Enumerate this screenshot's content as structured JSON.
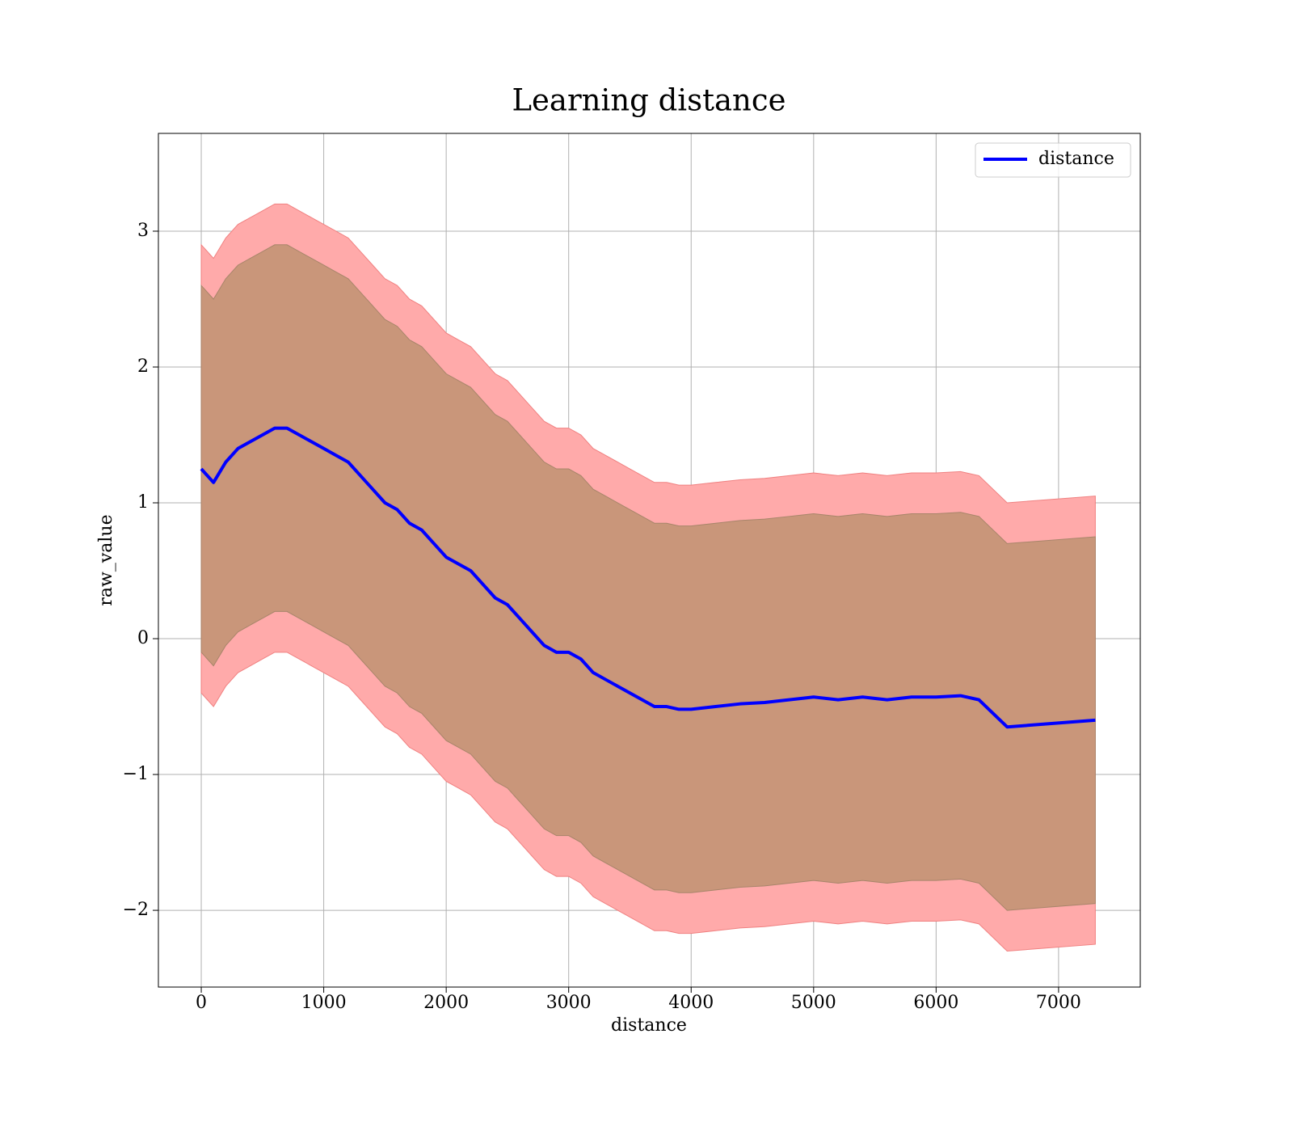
{
  "chart_data": {
    "type": "line",
    "title": "Learning distance",
    "x_label": "distance",
    "y_label": "raw_value",
    "x": [
      0,
      100,
      200,
      300,
      400,
      500,
      600,
      700,
      800,
      900,
      1000,
      1100,
      1200,
      1300,
      1400,
      1500,
      1600,
      1700,
      1800,
      1900,
      2000,
      2100,
      2200,
      2300,
      2400,
      2500,
      2600,
      2700,
      2800,
      2900,
      3000,
      3100,
      3200,
      3300,
      3400,
      3500,
      3600,
      3700,
      3800,
      3900,
      4000,
      4200,
      4400,
      4600,
      4800,
      5000,
      5200,
      5400,
      5600,
      5800,
      6000,
      6200,
      6350,
      6580,
      7300
    ],
    "series": [
      {
        "name": "distance",
        "color": "#0000ff",
        "values": [
          1.25,
          1.15,
          1.3,
          1.4,
          1.45,
          1.5,
          1.55,
          1.55,
          1.5,
          1.45,
          1.4,
          1.35,
          1.3,
          1.2,
          1.1,
          1.0,
          0.95,
          0.85,
          0.8,
          0.7,
          0.6,
          0.55,
          0.5,
          0.4,
          0.3,
          0.25,
          0.15,
          0.05,
          -0.05,
          -0.1,
          -0.1,
          -0.15,
          -0.25,
          -0.3,
          -0.35,
          -0.4,
          -0.45,
          -0.5,
          -0.5,
          -0.52,
          -0.52,
          -0.5,
          -0.48,
          -0.47,
          -0.45,
          -0.43,
          -0.45,
          -0.43,
          -0.45,
          -0.43,
          -0.43,
          -0.42,
          -0.45,
          -0.65,
          -0.6
        ]
      }
    ],
    "bands": [
      {
        "color": "#ffaaaa",
        "edge": "#f08080",
        "upper": [
          2.9,
          2.8,
          2.95,
          3.05,
          3.1,
          3.15,
          3.2,
          3.2,
          3.15,
          3.1,
          3.05,
          3.0,
          2.95,
          2.85,
          2.75,
          2.65,
          2.6,
          2.5,
          2.45,
          2.35,
          2.25,
          2.2,
          2.15,
          2.05,
          1.95,
          1.9,
          1.8,
          1.7,
          1.6,
          1.55,
          1.55,
          1.5,
          1.4,
          1.35,
          1.3,
          1.25,
          1.2,
          1.15,
          1.15,
          1.13,
          1.13,
          1.15,
          1.17,
          1.18,
          1.2,
          1.22,
          1.2,
          1.22,
          1.2,
          1.22,
          1.22,
          1.23,
          1.2,
          1.0,
          1.05
        ],
        "lower": [
          -0.4,
          -0.5,
          -0.35,
          -0.25,
          -0.2,
          -0.15,
          -0.1,
          -0.1,
          -0.15,
          -0.2,
          -0.25,
          -0.3,
          -0.35,
          -0.45,
          -0.55,
          -0.65,
          -0.7,
          -0.8,
          -0.85,
          -0.95,
          -1.05,
          -1.1,
          -1.15,
          -1.25,
          -1.35,
          -1.4,
          -1.5,
          -1.6,
          -1.7,
          -1.75,
          -1.75,
          -1.8,
          -1.9,
          -1.95,
          -2.0,
          -2.05,
          -2.1,
          -2.15,
          -2.15,
          -2.17,
          -2.17,
          -2.15,
          -2.13,
          -2.12,
          -2.1,
          -2.08,
          -2.1,
          -2.08,
          -2.1,
          -2.08,
          -2.08,
          -2.07,
          -2.1,
          -2.3,
          -2.25
        ]
      },
      {
        "color": "#c9967a",
        "edge": "#a8856a",
        "upper": [
          2.6,
          2.5,
          2.65,
          2.75,
          2.8,
          2.85,
          2.9,
          2.9,
          2.85,
          2.8,
          2.75,
          2.7,
          2.65,
          2.55,
          2.45,
          2.35,
          2.3,
          2.2,
          2.15,
          2.05,
          1.95,
          1.9,
          1.85,
          1.75,
          1.65,
          1.6,
          1.5,
          1.4,
          1.3,
          1.25,
          1.25,
          1.2,
          1.1,
          1.05,
          1.0,
          0.95,
          0.9,
          0.85,
          0.85,
          0.83,
          0.83,
          0.85,
          0.87,
          0.88,
          0.9,
          0.92,
          0.9,
          0.92,
          0.9,
          0.92,
          0.92,
          0.93,
          0.9,
          0.7,
          0.75
        ],
        "lower": [
          -0.1,
          -0.2,
          -0.05,
          0.05,
          0.1,
          0.15,
          0.2,
          0.2,
          0.15,
          0.1,
          0.05,
          0,
          -0.05,
          -0.15,
          -0.25,
          -0.35,
          -0.4,
          -0.5,
          -0.55,
          -0.65,
          -0.75,
          -0.8,
          -0.85,
          -0.95,
          -1.05,
          -1.1,
          -1.2,
          -1.3,
          -1.4,
          -1.45,
          -1.45,
          -1.5,
          -1.6,
          -1.65,
          -1.7,
          -1.75,
          -1.8,
          -1.85,
          -1.85,
          -1.87,
          -1.87,
          -1.85,
          -1.83,
          -1.82,
          -1.8,
          -1.78,
          -1.8,
          -1.78,
          -1.8,
          -1.78,
          -1.78,
          -1.77,
          -1.8,
          -2.0,
          -1.95
        ]
      }
    ],
    "xlim": [
      -350,
      7667
    ],
    "ylim": [
      -2.565,
      3.72
    ],
    "xticks": [
      0,
      1000,
      2000,
      3000,
      4000,
      5000,
      6000,
      7000
    ],
    "yticks": [
      {
        "value": -2,
        "label": "−2"
      },
      {
        "value": -1,
        "label": "−1"
      },
      0,
      1,
      2,
      3
    ],
    "grid": true,
    "legend": "upper right"
  }
}
